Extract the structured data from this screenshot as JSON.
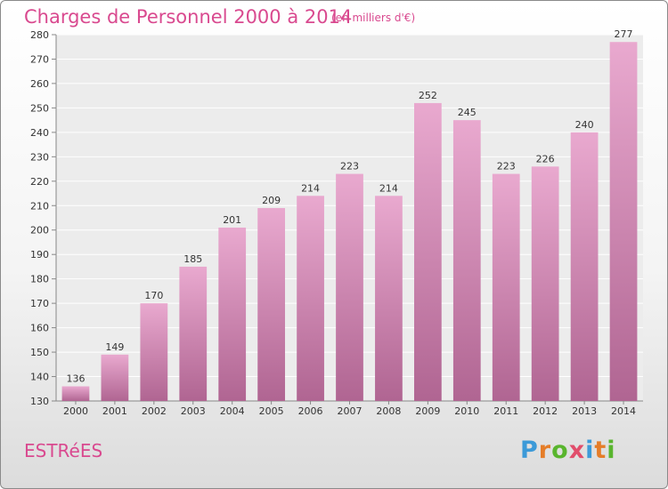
{
  "header": {
    "title": "Charges de Personnel 2000 à 2014",
    "subtitle": "(en milliers d'€)"
  },
  "footer": {
    "place": "ESTRéES",
    "brand_letters": [
      "P",
      "r",
      "o",
      "x",
      "i",
      "t",
      "i"
    ]
  },
  "colors": {
    "accent": "#d9498f",
    "bar_top": "#e9a9cf",
    "bar_bottom": "#b06592"
  },
  "chart_data": {
    "type": "bar",
    "categories": [
      "2000",
      "2001",
      "2002",
      "2003",
      "2004",
      "2005",
      "2006",
      "2007",
      "2008",
      "2009",
      "2010",
      "2011",
      "2012",
      "2013",
      "2014"
    ],
    "values": [
      136,
      149,
      170,
      185,
      201,
      209,
      214,
      223,
      214,
      252,
      245,
      223,
      226,
      240,
      277
    ],
    "ylim": [
      130,
      280
    ],
    "yticks": [
      130,
      140,
      150,
      160,
      170,
      180,
      190,
      200,
      210,
      220,
      230,
      240,
      250,
      260,
      270,
      280
    ],
    "grid": true
  }
}
